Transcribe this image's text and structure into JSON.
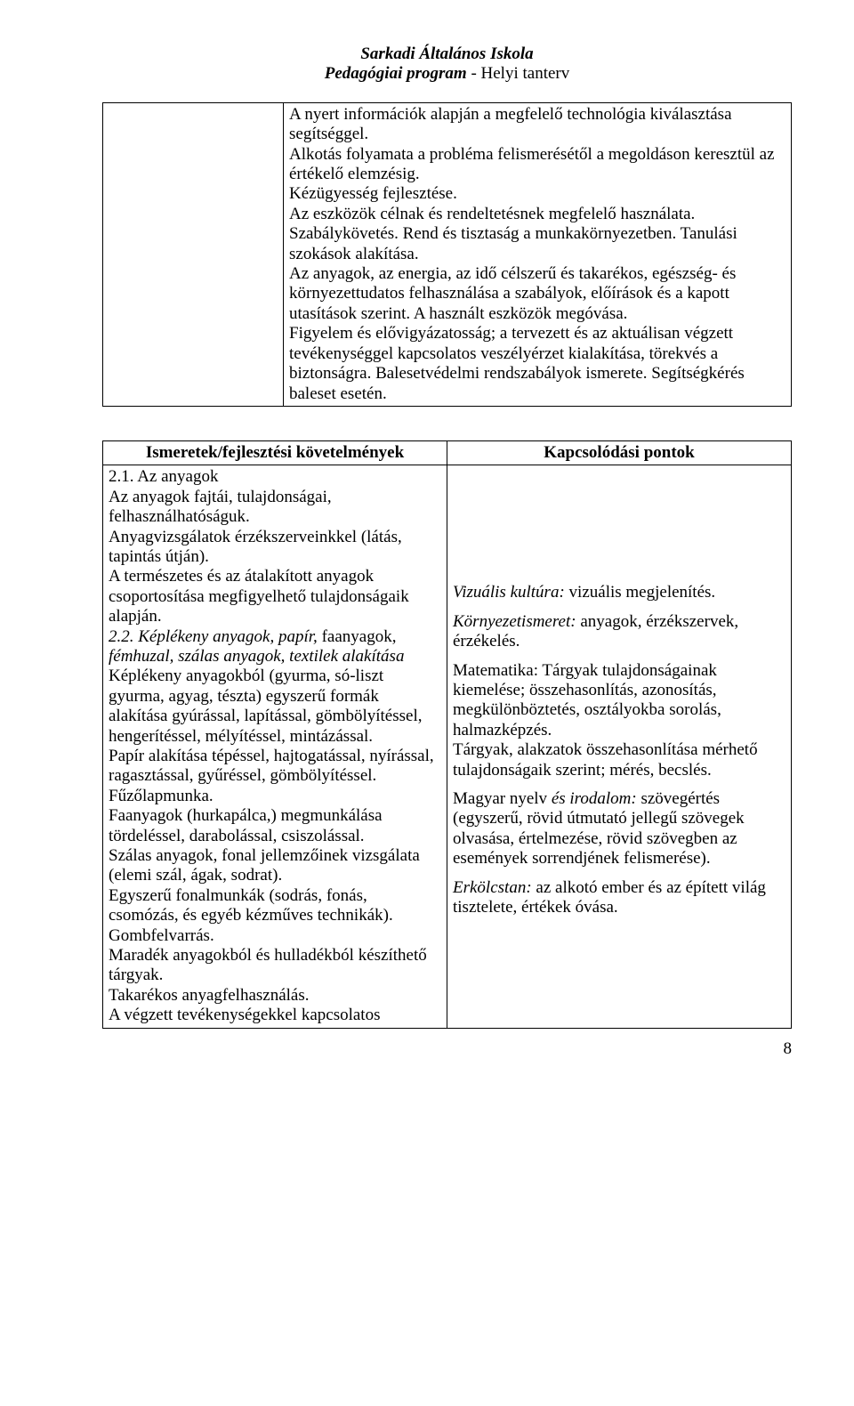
{
  "header": {
    "school": "Sarkadi Általános Iskola",
    "doc_bold": "Pedagógiai program",
    "doc_sep": " - ",
    "doc_rest": "Helyi tanterv"
  },
  "top_box": {
    "text": "A nyert információk alapján a megfelelő technológia kiválasztása segítséggel.\nAlkotás folyamata a probléma felismerésétől a megoldáson keresztül az értékelő elemzésig.\nKézügyesség fejlesztése.\nAz eszközök célnak és rendeltetésnek megfelelő használata. Szabálykövetés. Rend és tisztaság a munkakörnyezetben. Tanulási szokások alakítása.\nAz anyagok, az energia, az idő célszerű és takarékos, egészség- és környezettudatos felhasználása a szabályok, előírások és a kapott utasítások szerint. A használt eszközök megóvása.\nFigyelem és elővigyázatosság; a tervezett és az aktuálisan végzett tevékenységgel kapcsolatos veszélyérzet kialakítása, törekvés a biztonságra. Balesetvédelmi rendszabályok ismerete. Segítségkérés baleset esetén."
  },
  "table2": {
    "head_left": "Ismeretek/fejlesztési követelmények",
    "head_right": "Kapcsolódási pontok",
    "left": {
      "s1_title": "2.1. Az anyagok",
      "s1_body": "Az anyagok fajtái, tulajdonságai, felhasználhatóságuk.\nAnyagvizsgálatok érzékszerveinkkel (látás, tapintás útján).\nA természetes és az átalakított anyagok csoportosítása megfigyelhető tulajdonságaik alapján.",
      "s2_title_italic": "2.2. Képlékeny anyagok, papír, ",
      "s2_title_rest_line1": "faanyagok,",
      "s2_title_italic2": "fémhuzal, szálas anyagok, textilek alakítása",
      "s2_body": "Képlékeny anyagokból (gyurma, só-liszt gyurma, agyag, tészta) egyszerű formák alakítása gyúrással, lapítással, gömbölyítéssel, hengerítéssel, mélyítéssel, mintázással.\nPapír alakítása tépéssel, hajtogatással, nyírással, ragasztással, gyűréssel, gömbölyítéssel.\nFűzőlapmunka.\nFaanyagok (hurkapálca,) megmunkálása tördeléssel, darabolással, csiszolással.\nSzálas anyagok, fonal jellemzőinek vizsgálata (elemi szál, ágak, sodrat).\nEgyszerű fonalmunkák (sodrás, fonás, csomózás, és egyéb kézműves technikák). Gombfelvarrás.\nMaradék anyagokból és hulladékból készíthető tárgyak.\nTakarékos anyagfelhasználás.\nA végzett tevékenységekkel kapcsolatos"
    },
    "right": {
      "p1_label_italic": "Vizuális kultúra:",
      "p1_text": " vizuális megjelenítés.",
      "p2_label_italic": "Környezetismeret:",
      "p2_text": " anyagok, érzékszervek, érzékelés.",
      "p3_label": "Matematika",
      "p3_text": ": Tárgyak tulajdonságainak kiemelése; összehasonlítás, azonosítás, megkülönböztetés, osztályokba sorolás, halmazképzés.\nTárgyak, alakzatok összehasonlítása mérhető tulajdonságaik szerint; mérés, becslés.",
      "p4_label": "Magyar nyelv",
      "p4_label_italic": " és irodalom:",
      "p4_text": " szövegértés (egyszerű, rövid útmutató jellegű szövegek olvasása, értelmezése, rövid szövegben az események sorrendjének felismerése).",
      "p5_label_italic": "Erkölcstan:",
      "p5_text": " az alkotó ember és az épített világ tisztelete, értékek óvása."
    }
  },
  "page_number": "8"
}
